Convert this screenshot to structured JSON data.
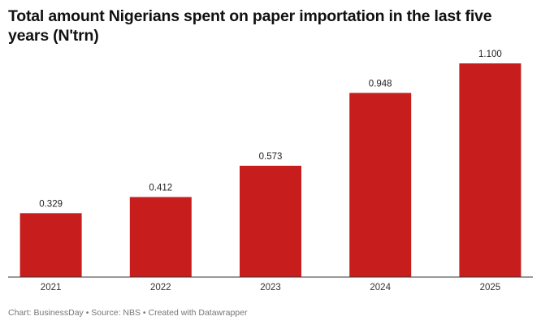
{
  "chart_data": {
    "type": "bar",
    "title": "Total amount Nigerians spent on paper importation in the last five years (N'trn)",
    "categories": [
      "2021",
      "2022",
      "2023",
      "2024",
      "2025"
    ],
    "values": [
      0.329,
      0.412,
      0.573,
      0.948,
      1.1
    ],
    "value_labels": [
      "0.329",
      "0.412",
      "0.573",
      "0.948",
      "1.100"
    ],
    "color": "#c71e1d",
    "footer": "Chart: BusinessDay • Source: NBS • Created with Datawrapper"
  }
}
